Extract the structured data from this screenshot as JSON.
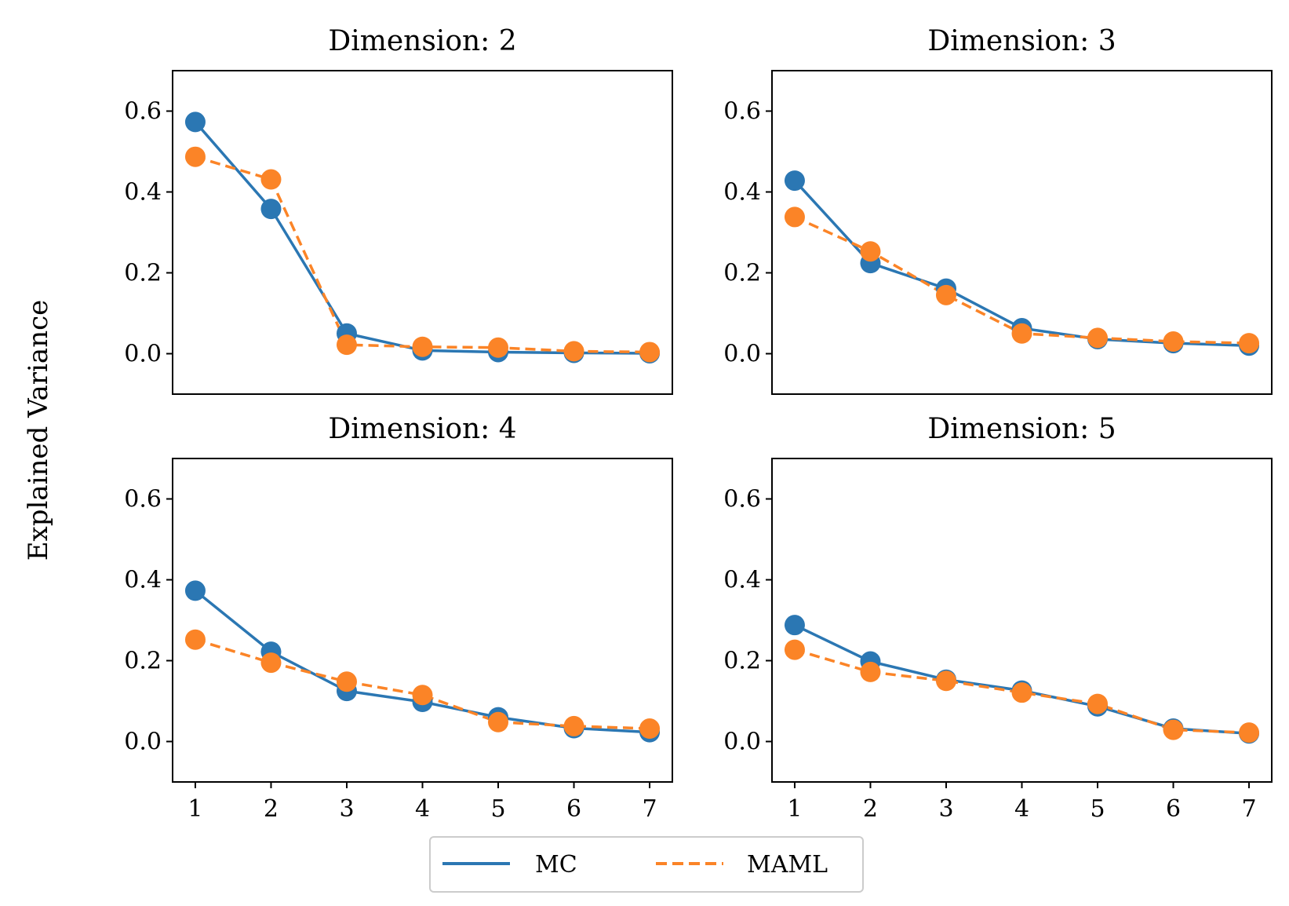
{
  "figure": {
    "ylabel": "Explained Variance",
    "colors": {
      "MC": "#2b77b3",
      "MAML": "#fb8427"
    }
  },
  "legend": {
    "placement": "bottom-center",
    "entries": [
      {
        "name": "MC",
        "style": "solid"
      },
      {
        "name": "MAML",
        "style": "dashed"
      }
    ]
  },
  "chart_data": [
    {
      "type": "line",
      "title": "Dimension: 2",
      "x": [
        1,
        2,
        3,
        4,
        5,
        6,
        7
      ],
      "ylim": [
        -0.1,
        0.7
      ],
      "yticks": [
        "0.0",
        "0.2",
        "0.4",
        "0.6"
      ],
      "xticks_visible": false,
      "series": [
        {
          "name": "MC",
          "values": [
            0.573,
            0.358,
            0.05,
            0.008,
            0.004,
            0.002,
            0.001
          ]
        },
        {
          "name": "MAML",
          "values": [
            0.487,
            0.431,
            0.022,
            0.017,
            0.015,
            0.006,
            0.004
          ]
        }
      ]
    },
    {
      "type": "line",
      "title": "Dimension: 3",
      "x": [
        1,
        2,
        3,
        4,
        5,
        6,
        7
      ],
      "ylim": [
        -0.1,
        0.7
      ],
      "yticks": [
        "0.0",
        "0.2",
        "0.4",
        "0.6"
      ],
      "xticks_visible": false,
      "series": [
        {
          "name": "MC",
          "values": [
            0.428,
            0.224,
            0.161,
            0.063,
            0.036,
            0.026,
            0.02
          ]
        },
        {
          "name": "MAML",
          "values": [
            0.338,
            0.253,
            0.145,
            0.05,
            0.039,
            0.03,
            0.026
          ]
        }
      ]
    },
    {
      "type": "line",
      "title": "Dimension: 4",
      "x": [
        1,
        2,
        3,
        4,
        5,
        6,
        7
      ],
      "ylim": [
        -0.1,
        0.7
      ],
      "yticks": [
        "0.0",
        "0.2",
        "0.4",
        "0.6"
      ],
      "xticks": [
        "1",
        "2",
        "3",
        "4",
        "5",
        "6",
        "7"
      ],
      "series": [
        {
          "name": "MC",
          "values": [
            0.373,
            0.222,
            0.125,
            0.098,
            0.06,
            0.033,
            0.023
          ]
        },
        {
          "name": "MAML",
          "values": [
            0.252,
            0.195,
            0.148,
            0.115,
            0.048,
            0.038,
            0.032
          ]
        }
      ]
    },
    {
      "type": "line",
      "title": "Dimension: 5",
      "x": [
        1,
        2,
        3,
        4,
        5,
        6,
        7
      ],
      "ylim": [
        -0.1,
        0.7
      ],
      "yticks": [
        "0.0",
        "0.2",
        "0.4",
        "0.6"
      ],
      "xticks": [
        "1",
        "2",
        "3",
        "4",
        "5",
        "6",
        "7"
      ],
      "series": [
        {
          "name": "MC",
          "values": [
            0.288,
            0.198,
            0.153,
            0.126,
            0.087,
            0.032,
            0.02
          ]
        },
        {
          "name": "MAML",
          "values": [
            0.227,
            0.172,
            0.15,
            0.121,
            0.093,
            0.029,
            0.022
          ]
        }
      ]
    }
  ]
}
